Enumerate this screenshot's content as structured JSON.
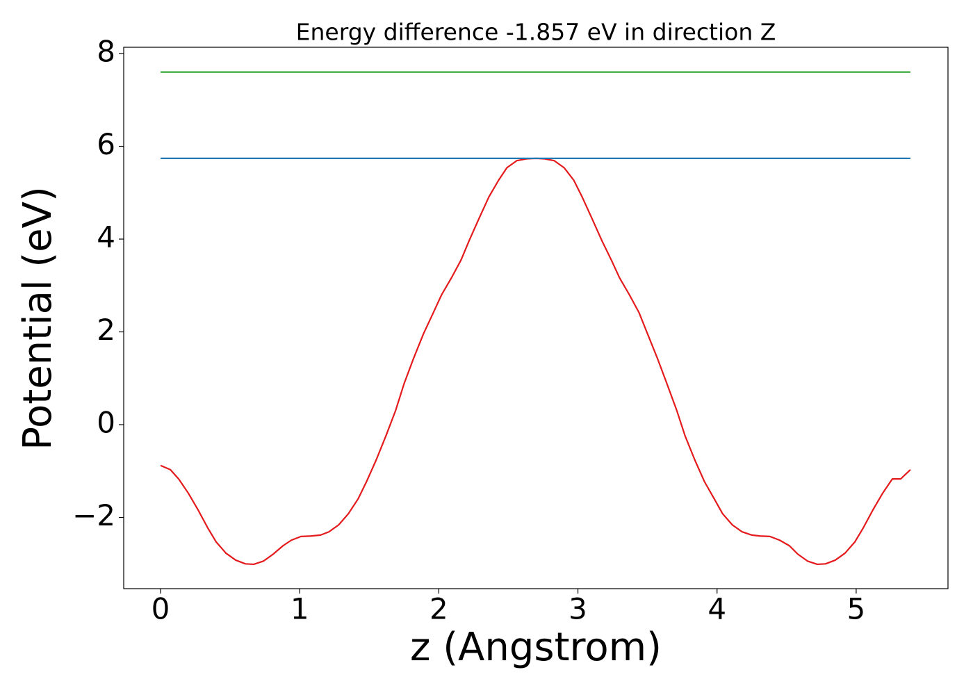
{
  "chart_data": {
    "type": "line",
    "title": "Energy difference -1.857 eV in direction Z",
    "x_label": "z (Angstrom)",
    "y_label": "Potential (eV)",
    "xlim": [
      -0.265,
      5.66
    ],
    "ylim": [
      -3.535,
      8.135
    ],
    "xticks": [
      0,
      1,
      2,
      3,
      4,
      5
    ],
    "yticks": [
      {
        "value": -2,
        "label": "−2"
      },
      0,
      2,
      4,
      6,
      8
    ],
    "grid": false,
    "series": [
      {
        "color": "#e41a1c",
        "x": [
          0,
          0.07,
          0.13,
          0.2,
          0.27,
          0.34,
          0.4,
          0.47,
          0.54,
          0.61,
          0.67,
          0.74,
          0.81,
          0.88,
          0.94,
          1.01,
          1.08,
          1.15,
          1.21,
          1.28,
          1.35,
          1.42,
          1.48,
          1.55,
          1.62,
          1.69,
          1.75,
          1.82,
          1.89,
          1.96,
          2.02,
          2.09,
          2.16,
          2.22,
          2.29,
          2.36,
          2.43,
          2.49,
          2.56,
          2.63,
          2.7,
          2.76,
          2.83,
          2.9,
          2.97,
          3.03,
          3.1,
          3.17,
          3.24,
          3.3,
          3.37,
          3.44,
          3.5,
          3.57,
          3.64,
          3.71,
          3.77,
          3.84,
          3.91,
          3.98,
          4.04,
          4.11,
          4.18,
          4.25,
          4.31,
          4.38,
          4.45,
          4.52,
          4.58,
          4.65,
          4.72,
          4.78,
          4.85,
          4.92,
          4.99,
          5.05,
          5.12,
          5.19,
          5.26,
          5.32,
          5.39
        ],
        "values": [
          -0.88,
          -0.97,
          -1.17,
          -1.48,
          -1.84,
          -2.23,
          -2.53,
          -2.77,
          -2.92,
          -3.0,
          -3.01,
          -2.94,
          -2.79,
          -2.61,
          -2.49,
          -2.41,
          -2.4,
          -2.38,
          -2.31,
          -2.16,
          -1.92,
          -1.6,
          -1.23,
          -0.76,
          -0.24,
          0.31,
          0.88,
          1.44,
          1.96,
          2.41,
          2.8,
          3.16,
          3.55,
          3.98,
          4.45,
          4.91,
          5.27,
          5.54,
          5.69,
          5.73,
          5.74,
          5.73,
          5.69,
          5.54,
          5.27,
          4.91,
          4.45,
          3.98,
          3.55,
          3.16,
          2.8,
          2.41,
          1.96,
          1.44,
          0.88,
          0.31,
          -0.24,
          -0.76,
          -1.23,
          -1.6,
          -1.92,
          -2.16,
          -2.31,
          -2.38,
          -2.4,
          -2.41,
          -2.49,
          -2.61,
          -2.79,
          -2.94,
          -3.01,
          -3.0,
          -2.92,
          -2.77,
          -2.53,
          -2.23,
          -1.84,
          -1.48,
          -1.17,
          -1.17,
          -0.97
        ]
      },
      {
        "color": "#1f77b4",
        "x": [
          0,
          5.39
        ],
        "values": [
          5.74,
          5.74
        ]
      },
      {
        "color": "#2ca02c",
        "x": [
          0,
          5.39
        ],
        "values": [
          7.6,
          7.6
        ]
      }
    ]
  }
}
